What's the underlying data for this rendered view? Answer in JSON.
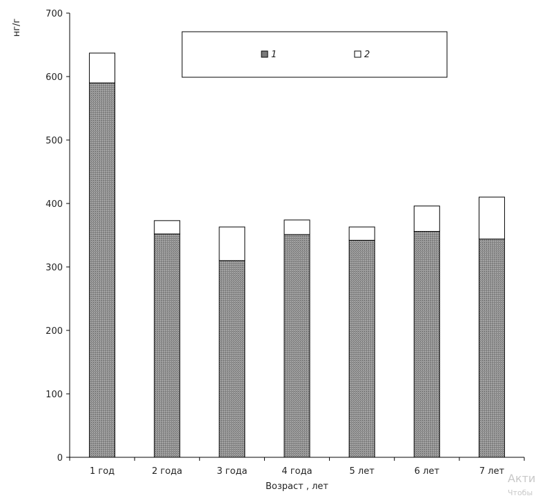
{
  "chart_data": {
    "type": "bar",
    "stacked": true,
    "ylabel": "нг/г",
    "xlabel": "Возраст , лет",
    "ylim": [
      0,
      700
    ],
    "yticks": [
      0,
      100,
      200,
      300,
      400,
      500,
      600,
      700
    ],
    "categories": [
      "1 год",
      "2 года",
      "3 года",
      "4 года",
      "5 лет",
      "6 лет",
      "7 лет"
    ],
    "series": [
      {
        "name": "1",
        "color": "#8c8c8c",
        "pattern": "stipple",
        "values": [
          590,
          352,
          310,
          351,
          342,
          356,
          344
        ]
      },
      {
        "name": "2",
        "color": "#ffffff",
        "values": [
          47,
          21,
          53,
          23,
          21,
          40,
          66
        ]
      }
    ],
    "legend": "top-center",
    "grid": false
  },
  "watermark": {
    "line1": "Акти",
    "line2": "Чтобы"
  }
}
